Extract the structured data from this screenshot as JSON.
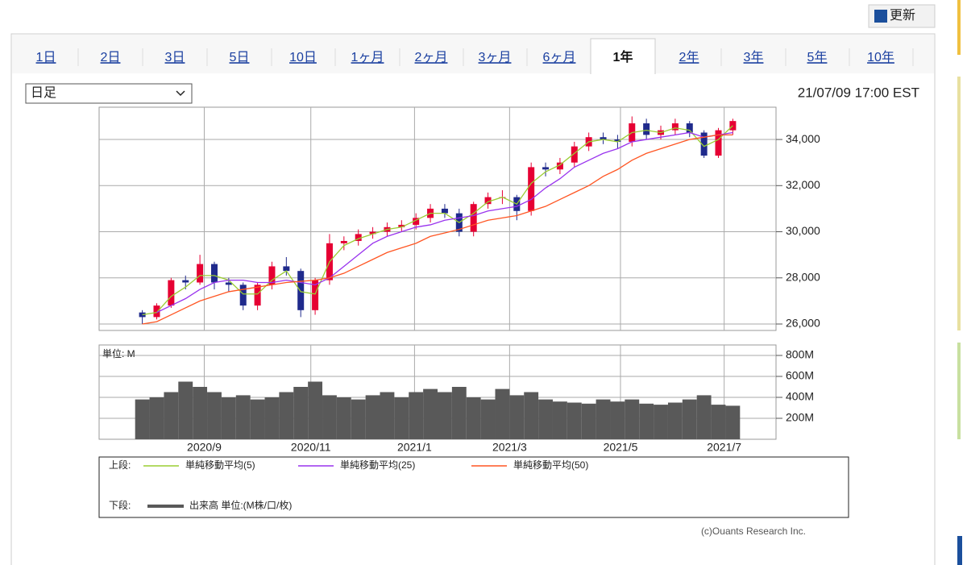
{
  "refresh_button": "更新",
  "tabs": [
    "1日",
    "2日",
    "3日",
    "5日",
    "10日",
    "1ヶ月",
    "2ヶ月",
    "3ヶ月",
    "6ヶ月",
    "1年",
    "2年",
    "3年",
    "5年",
    "10年"
  ],
  "active_tab": "1年",
  "period_select": "日足",
  "timestamp": "21/07/09 17:00 EST",
  "copyright": "(c)Ouants Research Inc.",
  "chart_data": {
    "type": "candlestick",
    "up_color": "#e60033",
    "down_color": "#1f2a8c",
    "xlim": [
      -3,
      44
    ],
    "xticks": [
      {
        "value": 4.3,
        "label": "2020/9"
      },
      {
        "value": 11.7,
        "label": "2020/11"
      },
      {
        "value": 18.9,
        "label": "2021/1"
      },
      {
        "value": 25.5,
        "label": "2021/3"
      },
      {
        "value": 33.2,
        "label": "2021/5"
      },
      {
        "value": 40.4,
        "label": "2021/7"
      }
    ],
    "ylim": [
      25720,
      35400
    ],
    "yticks": [
      {
        "value": 26000,
        "label": "26,000"
      },
      {
        "value": 28000,
        "label": "28,000"
      },
      {
        "value": 30000,
        "label": "30,000"
      },
      {
        "value": 32000,
        "label": "32,000"
      },
      {
        "value": 34000,
        "label": "34,000"
      }
    ],
    "grid": true,
    "candles": {
      "open": [
        26500,
        26300,
        26800,
        27900,
        27800,
        28600,
        27800,
        27700,
        26800,
        27700,
        28500,
        28300,
        26600,
        27900,
        29500,
        29600,
        29900,
        30000,
        30200,
        30300,
        30600,
        31000,
        30800,
        30000,
        31200,
        31500,
        31500,
        30900,
        32800,
        32700,
        33000,
        33700,
        34100,
        34000,
        33900,
        34700,
        34200,
        34400,
        34700,
        34300,
        33300,
        34400
      ],
      "high": [
        26600,
        26900,
        28000,
        28100,
        29000,
        28700,
        28000,
        27800,
        27800,
        28700,
        28900,
        28400,
        28000,
        29900,
        29800,
        30100,
        30200,
        30400,
        30500,
        30800,
        31200,
        31200,
        31000,
        31300,
        31700,
        31800,
        31600,
        33000,
        33000,
        33200,
        33900,
        34300,
        34300,
        34200,
        35000,
        34900,
        34600,
        34900,
        34800,
        34400,
        34500,
        34900
      ],
      "low": [
        26000,
        26200,
        26700,
        27500,
        27700,
        27500,
        27400,
        26600,
        26600,
        27500,
        28100,
        26300,
        26400,
        27700,
        29200,
        29400,
        29700,
        29800,
        30000,
        30100,
        30400,
        30600,
        29800,
        29800,
        31000,
        31200,
        30500,
        30700,
        32400,
        32500,
        32800,
        33500,
        33800,
        33600,
        33700,
        34000,
        34000,
        34200,
        34100,
        33200,
        33200,
        34200
      ],
      "close": [
        26300,
        26800,
        27900,
        27800,
        28600,
        27800,
        27700,
        26800,
        27700,
        28500,
        28300,
        26600,
        27900,
        29500,
        29600,
        29900,
        30000,
        30200,
        30300,
        30600,
        31000,
        30800,
        30000,
        31200,
        31500,
        31500,
        30900,
        32800,
        32700,
        33000,
        33700,
        34100,
        34000,
        33900,
        34700,
        34200,
        34400,
        34700,
        34300,
        33300,
        34400,
        34800
      ]
    },
    "legend_upper": "上段:",
    "legend_lower": "下段:",
    "series": [
      {
        "name": "単純移動平均(5)",
        "color": "#9acd32",
        "values": [
          26400,
          26500,
          27200,
          27600,
          28100,
          28100,
          27900,
          27300,
          27300,
          27900,
          28300,
          27400,
          27300,
          28700,
          29400,
          29700,
          29900,
          30100,
          30200,
          30500,
          30800,
          30800,
          30400,
          30800,
          31300,
          31500,
          31200,
          32100,
          32600,
          32900,
          33400,
          33900,
          34000,
          33900,
          34300,
          34400,
          34300,
          34500,
          34400,
          33700,
          34000,
          34600
        ]
      },
      {
        "name": "単純移動平均(25)",
        "color": "#9933ee",
        "values": [
          null,
          26500,
          26800,
          27100,
          27500,
          27800,
          27900,
          27900,
          27800,
          27800,
          27900,
          27800,
          27700,
          28000,
          28500,
          29000,
          29500,
          29800,
          30000,
          30200,
          30300,
          30500,
          30600,
          30700,
          30900,
          31000,
          31100,
          31400,
          31900,
          32300,
          32800,
          33100,
          33400,
          33600,
          33900,
          34000,
          34100,
          34200,
          34300,
          34100,
          34200,
          34300
        ]
      },
      {
        "name": "単純移動平均(50)",
        "color": "#ff5522",
        "values": [
          26000,
          26100,
          26400,
          26700,
          27000,
          27200,
          27400,
          27500,
          27600,
          27700,
          27800,
          27850,
          27900,
          28000,
          28200,
          28500,
          28800,
          29100,
          29300,
          29500,
          29800,
          29950,
          30100,
          30300,
          30500,
          30600,
          30700,
          30900,
          31100,
          31400,
          31700,
          32000,
          32400,
          32700,
          33100,
          33400,
          33600,
          33800,
          34000,
          34100,
          34200,
          34200
        ]
      }
    ],
    "volume": {
      "name": "出来高 単位:(M株/口/枚)",
      "unit_label": "単位: M",
      "color": "#595959",
      "ylim": [
        0,
        900
      ],
      "yticks": [
        {
          "value": 200,
          "label": "200M"
        },
        {
          "value": 400,
          "label": "400M"
        },
        {
          "value": 600,
          "label": "600M"
        },
        {
          "value": 800,
          "label": "800M"
        }
      ],
      "values": [
        380,
        400,
        450,
        550,
        500,
        450,
        400,
        420,
        380,
        400,
        450,
        500,
        550,
        420,
        400,
        380,
        420,
        450,
        400,
        450,
        480,
        450,
        500,
        400,
        380,
        480,
        420,
        450,
        380,
        360,
        350,
        340,
        380,
        360,
        380,
        340,
        330,
        350,
        380,
        420,
        330,
        320
      ]
    }
  }
}
